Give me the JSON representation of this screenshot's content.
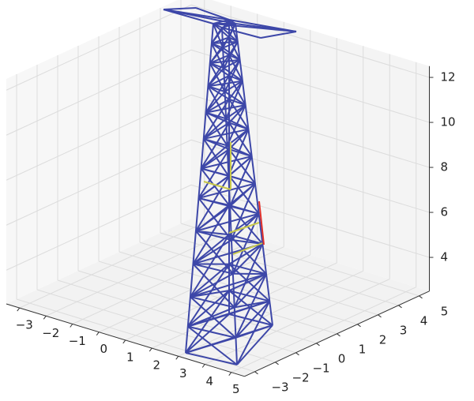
{
  "chart_data": {
    "type": "line3d",
    "xlim": [
      -3.5,
      5.5
    ],
    "ylim": [
      -3.5,
      5.5
    ],
    "zlim": [
      2.5,
      12.5
    ],
    "xticks": [
      {
        "value": -3,
        "label": "−3"
      },
      {
        "value": -2,
        "label": "−2"
      },
      {
        "value": -1,
        "label": "−1"
      },
      0,
      1,
      2,
      3,
      4,
      5
    ],
    "yticks": [
      {
        "value": -3,
        "label": "−3"
      },
      {
        "value": -2,
        "label": "−2"
      },
      {
        "value": -1,
        "label": "−1"
      },
      0,
      1,
      2,
      3,
      4,
      5
    ],
    "zticks": [
      4,
      6,
      8,
      10,
      12
    ],
    "grid": true
  }
}
